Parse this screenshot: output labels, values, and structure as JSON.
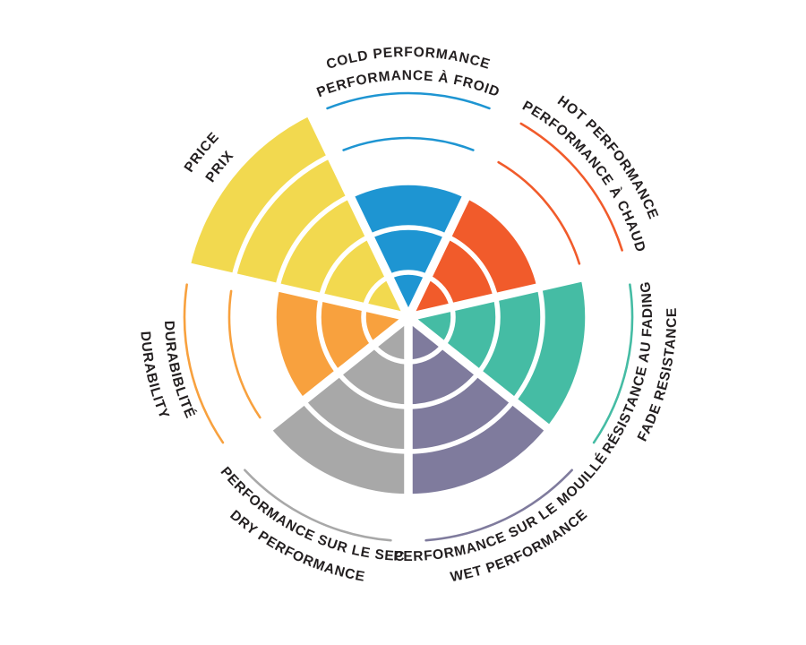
{
  "page": {
    "background": "#FFFFFF",
    "text_color": "#231F20"
  },
  "chart_data": {
    "type": "radar",
    "variant": "coxcomb-sector-wheel",
    "title": "",
    "levels": 5,
    "scale": {
      "min": 0,
      "max": 5
    },
    "legend_position": "none",
    "grid": "concentric-rings-with-radial-spokes",
    "sectors": [
      {
        "id": "cold-performance",
        "label_en": "COLD PERFORMANCE",
        "label_fr": "PERFORMANCE À FROID",
        "value": 3,
        "color": "#1E95D2",
        "flipped": false
      },
      {
        "id": "hot-performance",
        "label_en": "HOT PERFORMANCE",
        "label_fr": "PERFORMANCE À CHAUD",
        "value": 3,
        "color": "#F15B2B",
        "flipped": false
      },
      {
        "id": "fade-resistance",
        "label_en": "FADE RESISTANCE",
        "label_fr": "RÉSISTANCE AU FADING",
        "value": 4,
        "color": "#45BCA4",
        "flipped": true
      },
      {
        "id": "wet-performance",
        "label_en": "WET PERFORMANCE",
        "label_fr": "PERFORMANCE SUR LE MOUILLÉ",
        "value": 4,
        "color": "#7F7B9D",
        "flipped": true
      },
      {
        "id": "dry-performance",
        "label_en": "DRY PERFORMANCE",
        "label_fr": "PERFORMANCE SUR LE SEC",
        "value": 4,
        "color": "#A8A8A8",
        "flipped": true
      },
      {
        "id": "durability",
        "label_en": "DURABILITY",
        "label_fr": "DURABIBLITÉ",
        "value": 3,
        "color": "#F8A13E",
        "flipped": true
      },
      {
        "id": "price",
        "label_en": "PRICE",
        "label_fr": "PRIX",
        "value": 5,
        "color": "#F2D94F",
        "flipped": false
      }
    ]
  }
}
